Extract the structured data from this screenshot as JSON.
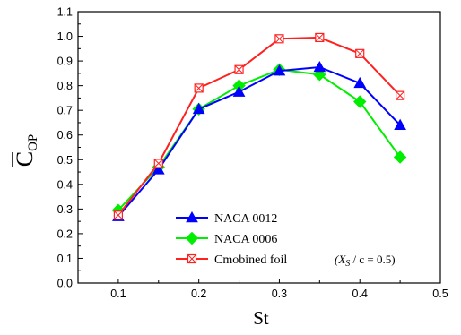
{
  "chart_data": {
    "type": "line",
    "xlabel": "St",
    "ylabel_main": "C",
    "ylabel_sub": "OP",
    "xlim": [
      0.05,
      0.5
    ],
    "ylim": [
      0.0,
      1.1
    ],
    "xticks": [
      0.1,
      0.2,
      0.3,
      0.4,
      0.5
    ],
    "xtick_labels": [
      "0.1",
      "0.2",
      "0.3",
      "0.4",
      "0.5"
    ],
    "yticks": [
      0.0,
      0.1,
      0.2,
      0.3,
      0.4,
      0.5,
      0.6,
      0.7,
      0.8,
      0.9,
      1.0,
      1.1
    ],
    "ytick_labels": [
      "0.0",
      "0.1",
      "0.2",
      "0.3",
      "0.4",
      "0.5",
      "0.6",
      "0.7",
      "0.8",
      "0.9",
      "1.0",
      "1.1"
    ],
    "legend_position": "bottom-center",
    "series": [
      {
        "name": "NACA 0012",
        "color": "#0000ff",
        "marker": "triangle",
        "x": [
          0.1,
          0.15,
          0.2,
          0.25,
          0.3,
          0.35,
          0.4,
          0.45
        ],
        "y": [
          0.27,
          0.46,
          0.705,
          0.775,
          0.86,
          0.875,
          0.81,
          0.64
        ]
      },
      {
        "name": "NACA 0006",
        "color": "#00ee00",
        "marker": "diamond",
        "x": [
          0.1,
          0.15,
          0.2,
          0.25,
          0.3,
          0.35,
          0.4,
          0.45
        ],
        "y": [
          0.295,
          0.47,
          0.705,
          0.8,
          0.865,
          0.845,
          0.735,
          0.51
        ]
      },
      {
        "name": "Cmobined foil",
        "name_note": "(X",
        "name_note_sub": "S",
        "name_note_tail": " / c = 0.5)",
        "color": "#ff2020",
        "marker": "crossed-square",
        "x": [
          0.1,
          0.15,
          0.2,
          0.25,
          0.3,
          0.35,
          0.4,
          0.45
        ],
        "y": [
          0.275,
          0.485,
          0.79,
          0.865,
          0.99,
          0.995,
          0.93,
          0.76
        ]
      }
    ]
  }
}
